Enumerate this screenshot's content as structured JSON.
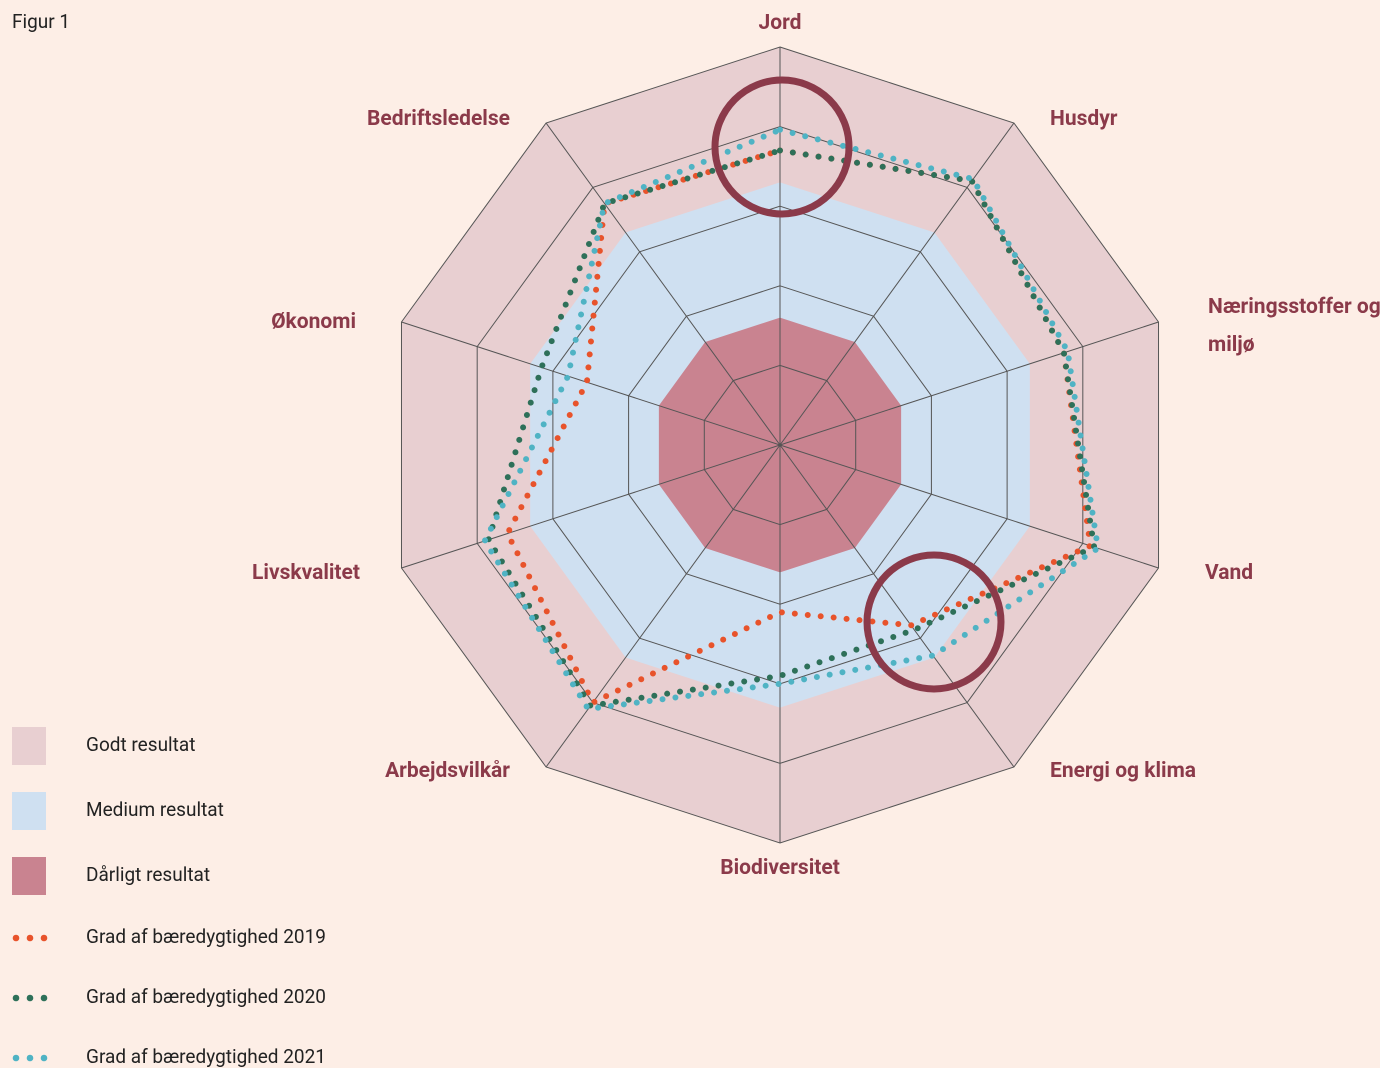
{
  "chart_data": {
    "type": "radar",
    "title": "Figur 1",
    "categories": [
      "Jord",
      "Husdyr",
      "Næringsstoffer og miljø",
      "Vand",
      "Energi og klima",
      "Biodiversitet",
      "Arbejdsvilkår",
      "Livskvalitet",
      "Økonomi",
      "Bedriftsledelse"
    ],
    "rlim": [
      0,
      5
    ],
    "rticks": [
      1,
      2,
      3,
      4,
      5
    ],
    "grid": true,
    "zones": [
      {
        "name": "Godt resultat",
        "color": "#e8cfd1",
        "value": 5
      },
      {
        "name": "Medium resultat",
        "color": "#cfe0f1",
        "value": 3.3
      },
      {
        "name": "Dårligt resultat",
        "color": "#c98390",
        "value": 1.6
      }
    ],
    "series": [
      {
        "name": "Grad af bæredygtighed 2019",
        "color": "#e8532b",
        "values": [
          3.7,
          4.1,
          3.75,
          4.1,
          2.8,
          2.1,
          4.0,
          3.6,
          2.55,
          3.75
        ]
      },
      {
        "name": "Grad af bæredygtighed 2020",
        "color": "#2e7059",
        "values": [
          3.7,
          4.1,
          3.75,
          4.15,
          2.87,
          2.9,
          4.05,
          3.85,
          3.15,
          3.75
        ]
      },
      {
        "name": "Grad af bæredygtighed 2021",
        "color": "#4fb3c4",
        "values": [
          3.96,
          4.13,
          3.8,
          4.2,
          3.27,
          3.0,
          4.1,
          3.9,
          2.8,
          3.75
        ]
      }
    ]
  }
}
